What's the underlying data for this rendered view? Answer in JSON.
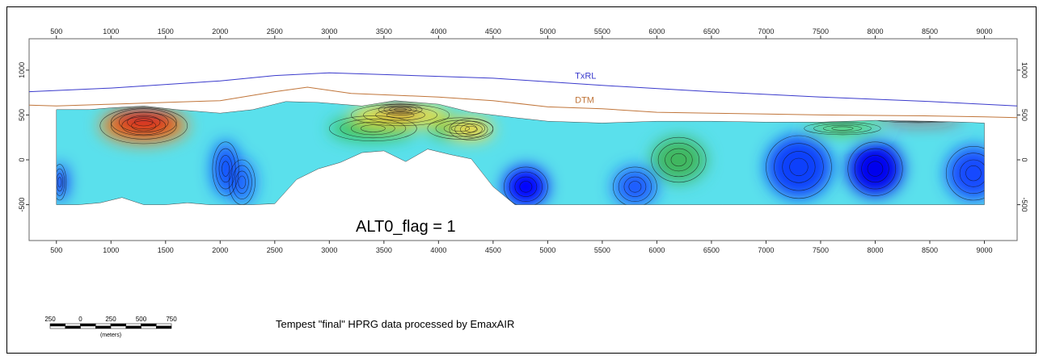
{
  "chart_data": {
    "type": "section",
    "x_ticks": [
      500,
      1000,
      1500,
      2000,
      2500,
      3000,
      3500,
      4000,
      4500,
      5000,
      5500,
      6000,
      6500,
      7000,
      7500,
      8000,
      8500,
      9000
    ],
    "y_ticks": [
      1000,
      500,
      0,
      -500
    ],
    "xlim": [
      250,
      9300
    ],
    "ylim": [
      -900,
      1350
    ],
    "annotation": "ALT0_flag  =  1",
    "series": [
      {
        "name": "TxRL",
        "color": "#3a3acc",
        "x": [
          250,
          1000,
          2000,
          2500,
          3000,
          3500,
          4500,
          5500,
          6500,
          7500,
          8500,
          9300
        ],
        "y": [
          760,
          800,
          880,
          940,
          970,
          950,
          910,
          830,
          760,
          700,
          650,
          600
        ]
      },
      {
        "name": "DTM",
        "color": "#c0753a",
        "x": [
          250,
          500,
          1000,
          1500,
          2000,
          2500,
          2800,
          3200,
          3600,
          4000,
          4500,
          5000,
          5500,
          6000,
          6500,
          7000,
          7500,
          8000,
          8500,
          9000,
          9300
        ],
        "y": [
          610,
          600,
          620,
          640,
          660,
          760,
          810,
          740,
          720,
          700,
          660,
          590,
          570,
          530,
          520,
          510,
          500,
          495,
          490,
          480,
          470
        ]
      }
    ],
    "section_top": {
      "x": [
        500,
        800,
        1000,
        1300,
        1600,
        2000,
        2300,
        2600,
        2900,
        3300,
        3600,
        4000,
        4300,
        4700,
        5000,
        5500,
        6000,
        6500,
        7000,
        7500,
        8000,
        8500,
        8800,
        9000
      ],
      "y": [
        560,
        560,
        580,
        600,
        560,
        520,
        560,
        650,
        640,
        600,
        660,
        620,
        530,
        470,
        430,
        410,
        430,
        430,
        420,
        420,
        440,
        430,
        420,
        410
      ]
    },
    "section_bottom": {
      "x": [
        500,
        700,
        900,
        1100,
        1300,
        1500,
        1700,
        1900,
        2100,
        2300,
        2500,
        2700,
        2900,
        3100,
        3300,
        3500,
        3700,
        3900,
        4100,
        4300,
        4500,
        4700,
        4900,
        5100,
        5300,
        5500,
        5700,
        6000,
        6300,
        6600,
        6900,
        7200,
        7500,
        7800,
        8100,
        8400,
        8700,
        9000
      ],
      "y": [
        -500,
        -500,
        -480,
        -420,
        -500,
        -500,
        -480,
        -500,
        -500,
        -500,
        -490,
        -220,
        -100,
        -30,
        80,
        100,
        -20,
        120,
        60,
        10,
        -300,
        -500,
        -500,
        -500,
        -500,
        -500,
        -500,
        -500,
        -500,
        -500,
        -500,
        -500,
        -500,
        -500,
        -500,
        -500,
        -500,
        -500
      ]
    },
    "anomalies": [
      {
        "name": "low",
        "color": "#0000ff",
        "cx": 530,
        "cy": -250,
        "rx": 60,
        "ry": 200
      },
      {
        "name": "low",
        "color": "#0a47ff",
        "cx": 2050,
        "cy": -100,
        "rx": 120,
        "ry": 300
      },
      {
        "name": "low",
        "color": "#1c66ff",
        "cx": 2200,
        "cy": -250,
        "rx": 120,
        "ry": 250
      },
      {
        "name": "low",
        "color": "#0000ff",
        "cx": 4800,
        "cy": -300,
        "rx": 200,
        "ry": 220
      },
      {
        "name": "low",
        "color": "#1f5bff",
        "cx": 5800,
        "cy": -300,
        "rx": 200,
        "ry": 220
      },
      {
        "name": "low",
        "color": "#0f3ffb",
        "cx": 7300,
        "cy": -80,
        "rx": 300,
        "ry": 350
      },
      {
        "name": "low",
        "color": "#0000ee",
        "cx": 8000,
        "cy": -100,
        "rx": 250,
        "ry": 300
      },
      {
        "name": "low",
        "color": "#1248ff",
        "cx": 8900,
        "cy": -150,
        "rx": 250,
        "ry": 300
      },
      {
        "name": "mid",
        "color": "#35c35a",
        "cx": 3400,
        "cy": 350,
        "rx": 400,
        "ry": 140
      },
      {
        "name": "mid",
        "color": "#4fc44e",
        "cx": 4200,
        "cy": 350,
        "rx": 300,
        "ry": 120
      },
      {
        "name": "mid",
        "color": "#3fb75f",
        "cx": 6200,
        "cy": 0,
        "rx": 250,
        "ry": 250
      },
      {
        "name": "mid",
        "color": "#5bcc45",
        "cx": 7700,
        "cy": 350,
        "rx": 350,
        "ry": 70
      },
      {
        "name": "high",
        "color": "#f7e13a",
        "cx": 3650,
        "cy": 500,
        "rx": 450,
        "ry": 120
      },
      {
        "name": "high",
        "color": "#ffd62e",
        "cx": 4300,
        "cy": 340,
        "rx": 200,
        "ry": 120
      },
      {
        "name": "high",
        "color": "#f28a1f",
        "cx": 1300,
        "cy": 380,
        "rx": 400,
        "ry": 200
      },
      {
        "name": "high",
        "color": "#d8271d",
        "cx": 1300,
        "cy": 420,
        "rx": 300,
        "ry": 150
      },
      {
        "name": "high",
        "color": "#cc2211",
        "cx": 3650,
        "cy": 560,
        "rx": 200,
        "ry": 60
      },
      {
        "name": "high",
        "color": "#d41f1a",
        "cx": 8400,
        "cy": 450,
        "rx": 400,
        "ry": 35
      }
    ]
  },
  "scalebar": {
    "labels": [
      "250",
      "0",
      "250",
      "500",
      "750"
    ],
    "unit": "(meters)"
  },
  "caption": "Tempest \"final\" HPRG data processed by EmaxAIR"
}
